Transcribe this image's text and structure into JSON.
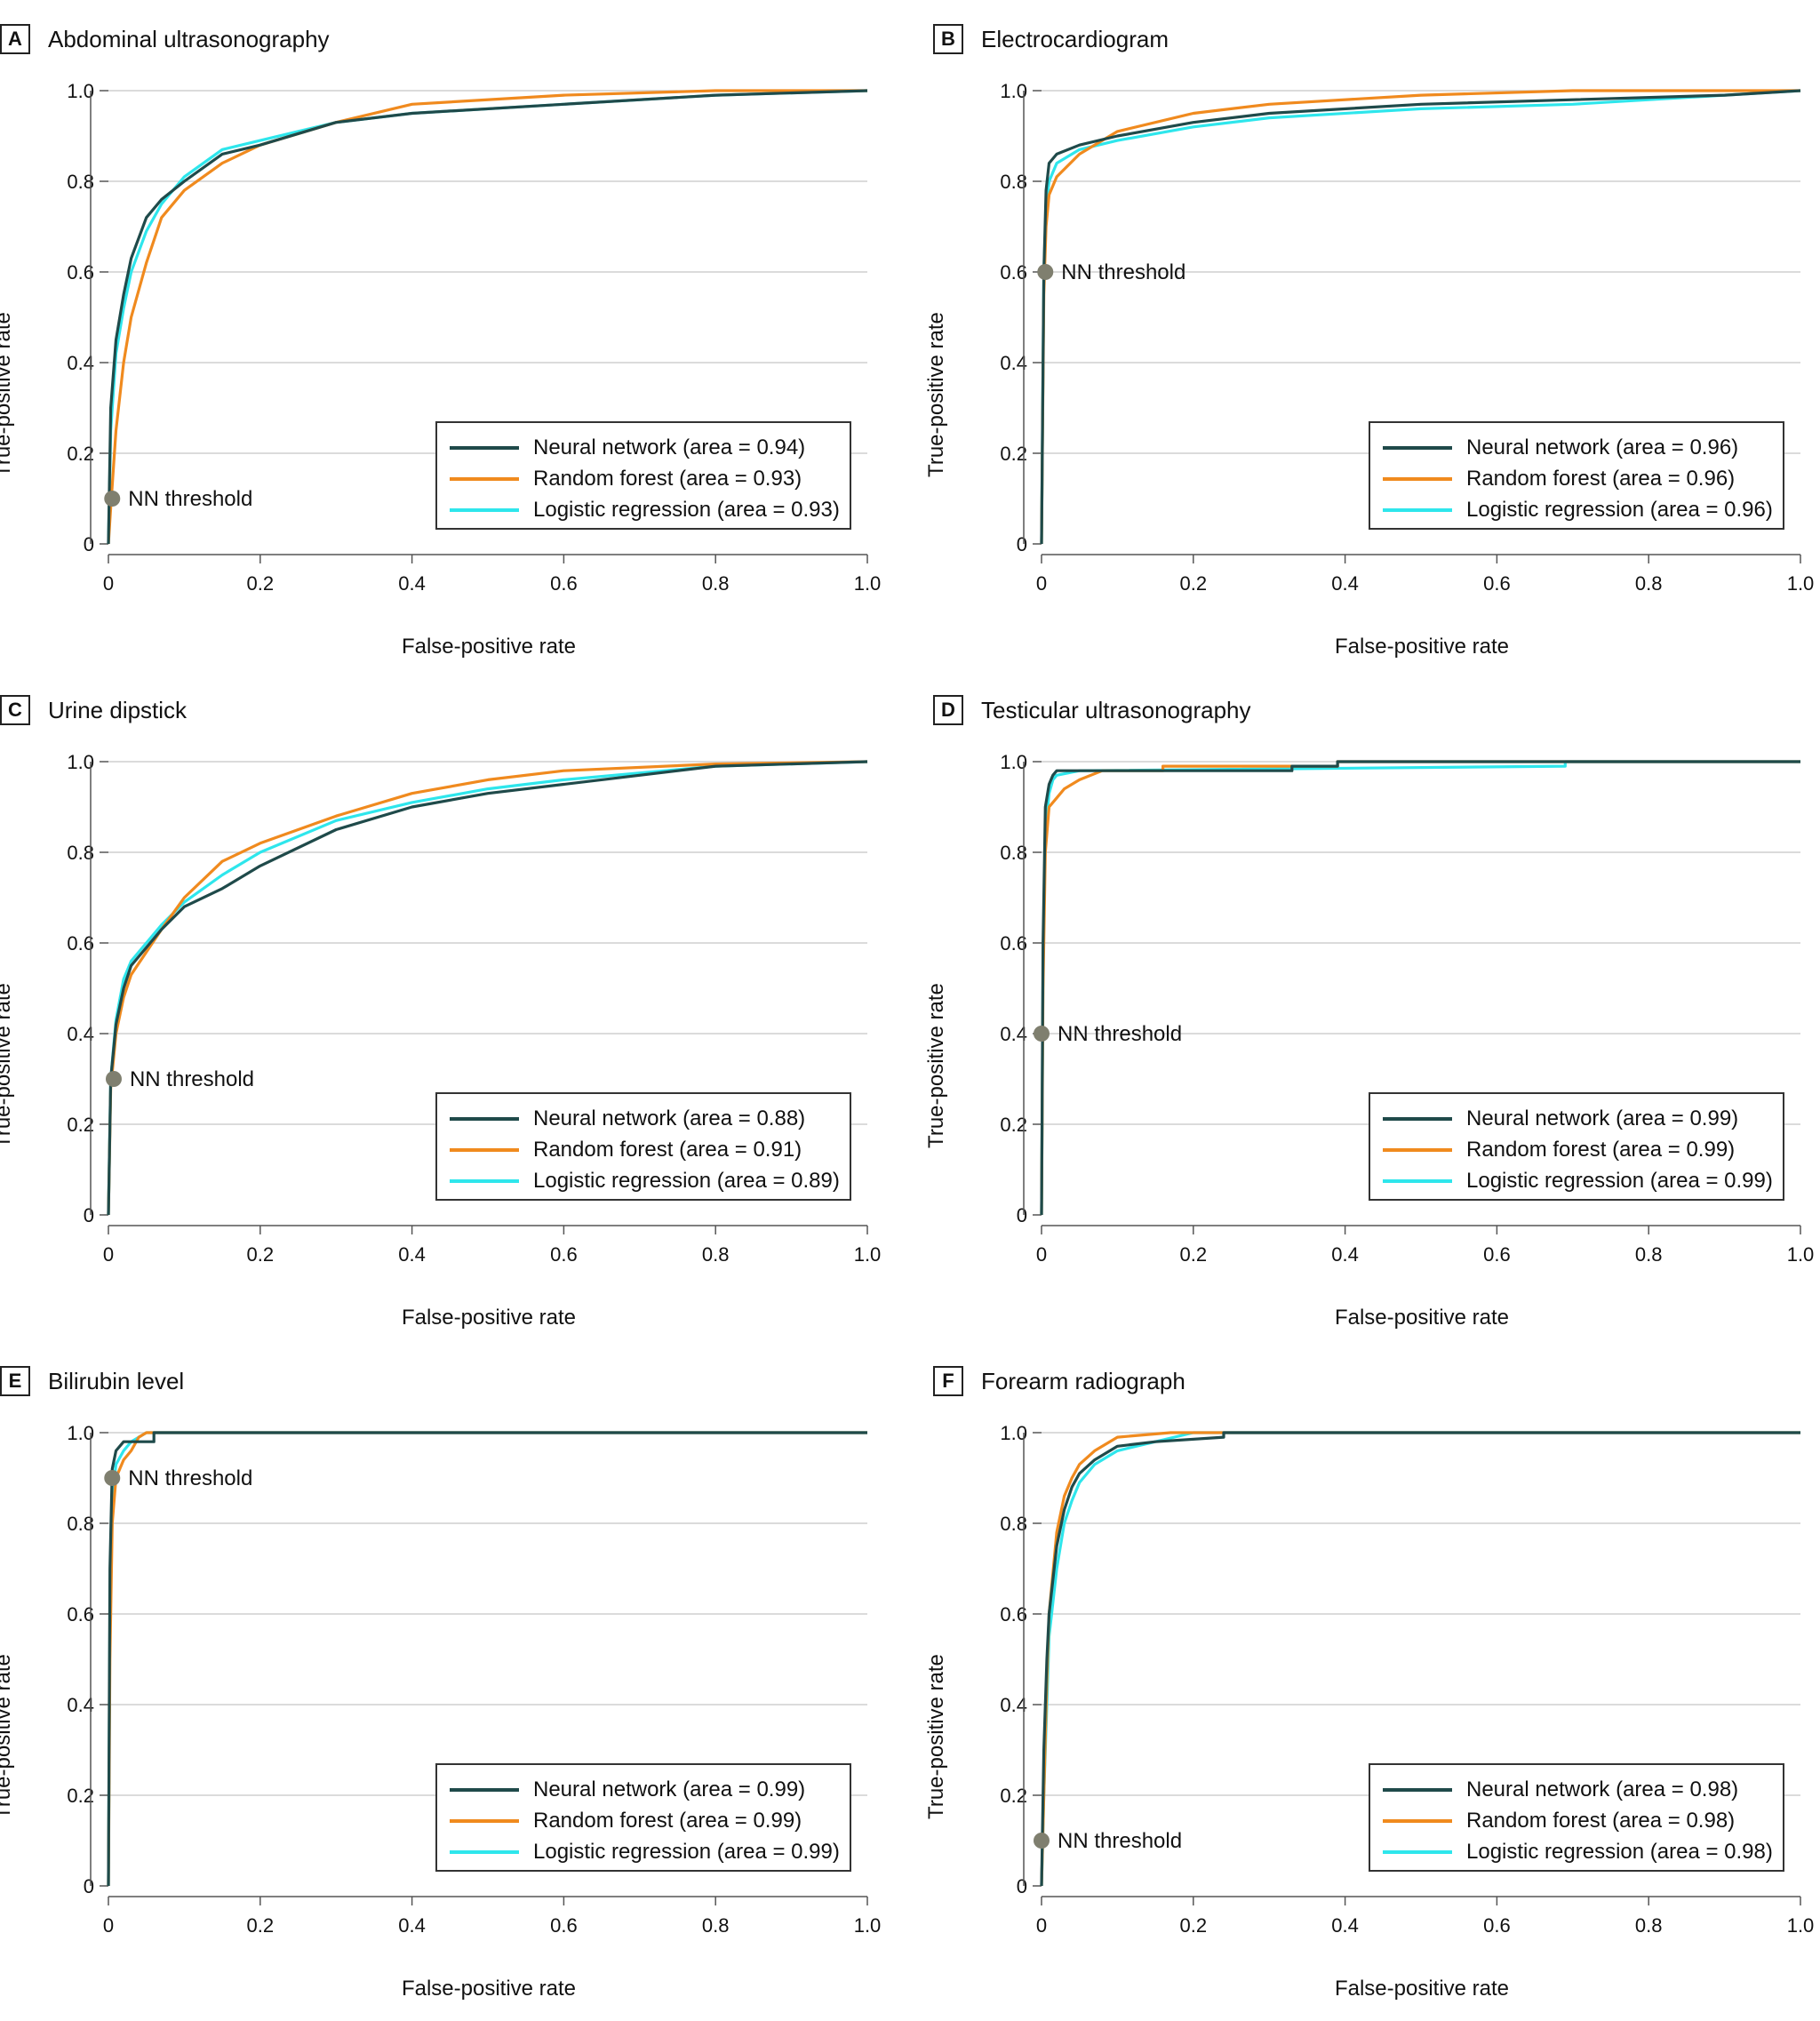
{
  "colors": {
    "neural_network": "#1f4a4a",
    "random_forest": "#f08a1e",
    "logistic_regression": "#2ee6ec",
    "threshold_marker": "#7f7f6f",
    "gridline": "#cfcfcf",
    "axis": "#555555"
  },
  "chart_data": [
    {
      "type": "line",
      "letter": "A",
      "title": "Abdominal ultrasonography",
      "xlabel": "False-positive rate",
      "ylabel": "True-positive rate",
      "xlim": [
        0,
        1
      ],
      "ylim": [
        0,
        1
      ],
      "xticks": [
        "0",
        "0.2",
        "0.4",
        "0.6",
        "0.8",
        "1.0"
      ],
      "yticks": [
        "0",
        "0.2",
        "0.4",
        "0.6",
        "0.8",
        "1.0"
      ],
      "grid": "horizontal",
      "legend": "bottom-right",
      "series": [
        {
          "key": "nn",
          "name": "Neural network (area = 0.94)",
          "x": [
            0,
            0.003,
            0.01,
            0.02,
            0.03,
            0.05,
            0.07,
            0.1,
            0.15,
            0.2,
            0.3,
            0.4,
            0.6,
            0.8,
            1.0
          ],
          "y": [
            0,
            0.3,
            0.45,
            0.55,
            0.63,
            0.72,
            0.76,
            0.8,
            0.86,
            0.88,
            0.93,
            0.95,
            0.97,
            0.99,
            1.0
          ]
        },
        {
          "key": "rf",
          "name": "Random forest (area = 0.93)",
          "x": [
            0,
            0.003,
            0.01,
            0.02,
            0.03,
            0.05,
            0.07,
            0.1,
            0.15,
            0.2,
            0.3,
            0.4,
            0.6,
            0.8,
            1.0
          ],
          "y": [
            0,
            0.08,
            0.25,
            0.4,
            0.5,
            0.62,
            0.72,
            0.78,
            0.84,
            0.88,
            0.93,
            0.97,
            0.99,
            1.0,
            1.0
          ]
        },
        {
          "key": "lr",
          "name": "Logistic regression (area = 0.93)",
          "x": [
            0,
            0.003,
            0.01,
            0.02,
            0.03,
            0.05,
            0.07,
            0.1,
            0.15,
            0.2,
            0.3,
            0.4,
            0.6,
            0.8,
            1.0
          ],
          "y": [
            0,
            0.25,
            0.42,
            0.52,
            0.6,
            0.69,
            0.75,
            0.81,
            0.87,
            0.89,
            0.93,
            0.95,
            0.97,
            0.99,
            1.0
          ]
        }
      ],
      "threshold": {
        "label": "NN threshold",
        "x": 0.005,
        "y": 0.1
      }
    },
    {
      "type": "line",
      "letter": "B",
      "title": "Electrocardiogram",
      "xlabel": "False-positive rate",
      "ylabel": "True-positive rate",
      "xlim": [
        0,
        1
      ],
      "ylim": [
        0,
        1
      ],
      "xticks": [
        "0",
        "0.2",
        "0.4",
        "0.6",
        "0.8",
        "1.0"
      ],
      "yticks": [
        "0",
        "0.2",
        "0.4",
        "0.6",
        "0.8",
        "1.0"
      ],
      "grid": "horizontal",
      "legend": "bottom-right",
      "series": [
        {
          "key": "nn",
          "name": "Neural network (area = 0.96)",
          "x": [
            0,
            0.003,
            0.006,
            0.01,
            0.02,
            0.05,
            0.1,
            0.2,
            0.3,
            0.5,
            0.7,
            0.9,
            1.0
          ],
          "y": [
            0,
            0.6,
            0.78,
            0.84,
            0.86,
            0.88,
            0.9,
            0.93,
            0.95,
            0.97,
            0.98,
            0.99,
            1.0
          ]
        },
        {
          "key": "rf",
          "name": "Random forest (area = 0.96)",
          "x": [
            0,
            0.003,
            0.006,
            0.01,
            0.02,
            0.05,
            0.1,
            0.2,
            0.3,
            0.5,
            0.7,
            0.9,
            1.0
          ],
          "y": [
            0,
            0.55,
            0.7,
            0.77,
            0.81,
            0.86,
            0.91,
            0.95,
            0.97,
            0.99,
            1.0,
            1.0,
            1.0
          ]
        },
        {
          "key": "lr",
          "name": "Logistic regression (area = 0.96)",
          "x": [
            0,
            0.003,
            0.006,
            0.01,
            0.02,
            0.05,
            0.1,
            0.2,
            0.3,
            0.5,
            0.7,
            0.9,
            1.0
          ],
          "y": [
            0,
            0.6,
            0.74,
            0.8,
            0.84,
            0.87,
            0.89,
            0.92,
            0.94,
            0.96,
            0.97,
            0.99,
            1.0
          ]
        }
      ],
      "threshold": {
        "label": "NN threshold",
        "x": 0.005,
        "y": 0.6
      }
    },
    {
      "type": "line",
      "letter": "C",
      "title": "Urine dipstick",
      "xlabel": "False-positive rate",
      "ylabel": "True-positive rate",
      "xlim": [
        0,
        1
      ],
      "ylim": [
        0,
        1
      ],
      "xticks": [
        "0",
        "0.2",
        "0.4",
        "0.6",
        "0.8",
        "1.0"
      ],
      "yticks": [
        "0",
        "0.2",
        "0.4",
        "0.6",
        "0.8",
        "1.0"
      ],
      "grid": "horizontal",
      "legend": "bottom-right",
      "series": [
        {
          "key": "nn",
          "name": "Neural network (area = 0.88)",
          "x": [
            0,
            0.003,
            0.01,
            0.02,
            0.03,
            0.05,
            0.07,
            0.1,
            0.15,
            0.2,
            0.3,
            0.4,
            0.5,
            0.6,
            0.8,
            1.0
          ],
          "y": [
            0,
            0.3,
            0.42,
            0.5,
            0.55,
            0.59,
            0.63,
            0.68,
            0.72,
            0.77,
            0.85,
            0.9,
            0.93,
            0.95,
            0.99,
            1.0
          ]
        },
        {
          "key": "rf",
          "name": "Random forest (area = 0.91)",
          "x": [
            0,
            0.003,
            0.01,
            0.02,
            0.03,
            0.05,
            0.07,
            0.1,
            0.15,
            0.2,
            0.3,
            0.4,
            0.5,
            0.6,
            0.8,
            1.0
          ],
          "y": [
            0,
            0.28,
            0.4,
            0.48,
            0.53,
            0.58,
            0.63,
            0.7,
            0.78,
            0.82,
            0.88,
            0.93,
            0.96,
            0.98,
            0.995,
            1.0
          ]
        },
        {
          "key": "lr",
          "name": "Logistic regression (area = 0.89)",
          "x": [
            0,
            0.003,
            0.01,
            0.02,
            0.03,
            0.05,
            0.07,
            0.1,
            0.15,
            0.2,
            0.3,
            0.4,
            0.5,
            0.6,
            0.8,
            1.0
          ],
          "y": [
            0,
            0.3,
            0.43,
            0.52,
            0.56,
            0.6,
            0.64,
            0.69,
            0.75,
            0.8,
            0.87,
            0.91,
            0.94,
            0.96,
            0.99,
            1.0
          ]
        }
      ],
      "threshold": {
        "label": "NN threshold",
        "x": 0.007,
        "y": 0.3
      }
    },
    {
      "type": "line",
      "letter": "D",
      "title": "Testicular ultrasonography",
      "xlabel": "False-positive rate",
      "ylabel": "True-positive rate",
      "xlim": [
        0,
        1
      ],
      "ylim": [
        0,
        1
      ],
      "xticks": [
        "0",
        "0.2",
        "0.4",
        "0.6",
        "0.8",
        "1.0"
      ],
      "yticks": [
        "0",
        "0.2",
        "0.4",
        "0.6",
        "0.8",
        "1.0"
      ],
      "grid": "horizontal",
      "legend": "bottom-right",
      "series": [
        {
          "key": "nn",
          "name": "Neural network (area = 0.99)",
          "x": [
            0,
            0.002,
            0.005,
            0.01,
            0.015,
            0.02,
            0.04,
            0.33,
            0.33,
            0.39,
            0.39,
            1.0
          ],
          "y": [
            0,
            0.6,
            0.9,
            0.95,
            0.97,
            0.98,
            0.98,
            0.98,
            0.99,
            0.99,
            1.0,
            1.0
          ]
        },
        {
          "key": "rf",
          "name": "Random forest (area = 0.99)",
          "x": [
            0,
            0.002,
            0.005,
            0.01,
            0.02,
            0.03,
            0.05,
            0.08,
            0.16,
            0.16,
            0.39,
            0.39,
            0.69,
            1.0
          ],
          "y": [
            0,
            0.5,
            0.8,
            0.9,
            0.92,
            0.94,
            0.96,
            0.98,
            0.98,
            0.99,
            0.99,
            1.0,
            1.0,
            1.0
          ]
        },
        {
          "key": "lr",
          "name": "Logistic regression (area = 0.99)",
          "x": [
            0,
            0.002,
            0.005,
            0.01,
            0.015,
            0.02,
            0.05,
            0.69,
            0.69,
            1.0
          ],
          "y": [
            0,
            0.55,
            0.85,
            0.93,
            0.96,
            0.97,
            0.98,
            0.99,
            1.0,
            1.0
          ]
        }
      ],
      "threshold": {
        "label": "NN threshold",
        "x": 0.0,
        "y": 0.4
      }
    },
    {
      "type": "line",
      "letter": "E",
      "title": "Bilirubin level",
      "xlabel": "False-positive rate",
      "ylabel": "True-positive rate",
      "xlim": [
        0,
        1
      ],
      "ylim": [
        0,
        1
      ],
      "xticks": [
        "0",
        "0.2",
        "0.4",
        "0.6",
        "0.8",
        "1.0"
      ],
      "yticks": [
        "0",
        "0.2",
        "0.4",
        "0.6",
        "0.8",
        "1.0"
      ],
      "grid": "horizontal",
      "legend": "bottom-right",
      "series": [
        {
          "key": "nn",
          "name": "Neural network (area = 0.99)",
          "x": [
            0,
            0.002,
            0.005,
            0.01,
            0.02,
            0.04,
            0.06,
            0.06,
            1.0
          ],
          "y": [
            0,
            0.7,
            0.92,
            0.96,
            0.98,
            0.98,
            0.98,
            1.0,
            1.0
          ]
        },
        {
          "key": "rf",
          "name": "Random forest (area = 0.99)",
          "x": [
            0,
            0.002,
            0.005,
            0.01,
            0.02,
            0.03,
            0.04,
            0.05,
            1.0
          ],
          "y": [
            0,
            0.5,
            0.8,
            0.9,
            0.94,
            0.96,
            0.99,
            1.0,
            1.0
          ]
        },
        {
          "key": "lr",
          "name": "Logistic regression (area = 0.99)",
          "x": [
            0,
            0.002,
            0.005,
            0.01,
            0.02,
            0.03,
            0.04,
            0.05,
            1.0
          ],
          "y": [
            0,
            0.6,
            0.86,
            0.93,
            0.96,
            0.98,
            0.99,
            1.0,
            1.0
          ]
        }
      ],
      "threshold": {
        "label": "NN threshold",
        "x": 0.005,
        "y": 0.9
      }
    },
    {
      "type": "line",
      "letter": "F",
      "title": "Forearm radiograph",
      "xlabel": "False-positive rate",
      "ylabel": "True-positive rate",
      "xlim": [
        0,
        1
      ],
      "ylim": [
        0,
        1
      ],
      "xticks": [
        "0",
        "0.2",
        "0.4",
        "0.6",
        "0.8",
        "1.0"
      ],
      "yticks": [
        "0",
        "0.2",
        "0.4",
        "0.6",
        "0.8",
        "1.0"
      ],
      "grid": "horizontal",
      "legend": "bottom-right",
      "series": [
        {
          "key": "nn",
          "name": "Neural network (area = 0.98)",
          "x": [
            0,
            0.003,
            0.007,
            0.01,
            0.02,
            0.03,
            0.04,
            0.05,
            0.07,
            0.1,
            0.15,
            0.24,
            0.24,
            1.0
          ],
          "y": [
            0,
            0.3,
            0.5,
            0.6,
            0.75,
            0.83,
            0.88,
            0.91,
            0.94,
            0.97,
            0.98,
            0.99,
            1.0,
            1.0
          ]
        },
        {
          "key": "rf",
          "name": "Random forest (area = 0.98)",
          "x": [
            0,
            0.003,
            0.007,
            0.01,
            0.02,
            0.03,
            0.04,
            0.05,
            0.07,
            0.1,
            0.17,
            1.0
          ],
          "y": [
            0,
            0.2,
            0.45,
            0.6,
            0.78,
            0.86,
            0.9,
            0.93,
            0.96,
            0.99,
            1.0,
            1.0
          ]
        },
        {
          "key": "lr",
          "name": "Logistic regression (area = 0.98)",
          "x": [
            0,
            0.003,
            0.007,
            0.01,
            0.02,
            0.03,
            0.04,
            0.05,
            0.07,
            0.1,
            0.15,
            0.2,
            1.0
          ],
          "y": [
            0,
            0.2,
            0.4,
            0.55,
            0.7,
            0.8,
            0.85,
            0.89,
            0.93,
            0.96,
            0.98,
            1.0,
            1.0
          ]
        }
      ],
      "threshold": {
        "label": "NN threshold",
        "x": 0.0,
        "y": 0.1
      }
    }
  ]
}
